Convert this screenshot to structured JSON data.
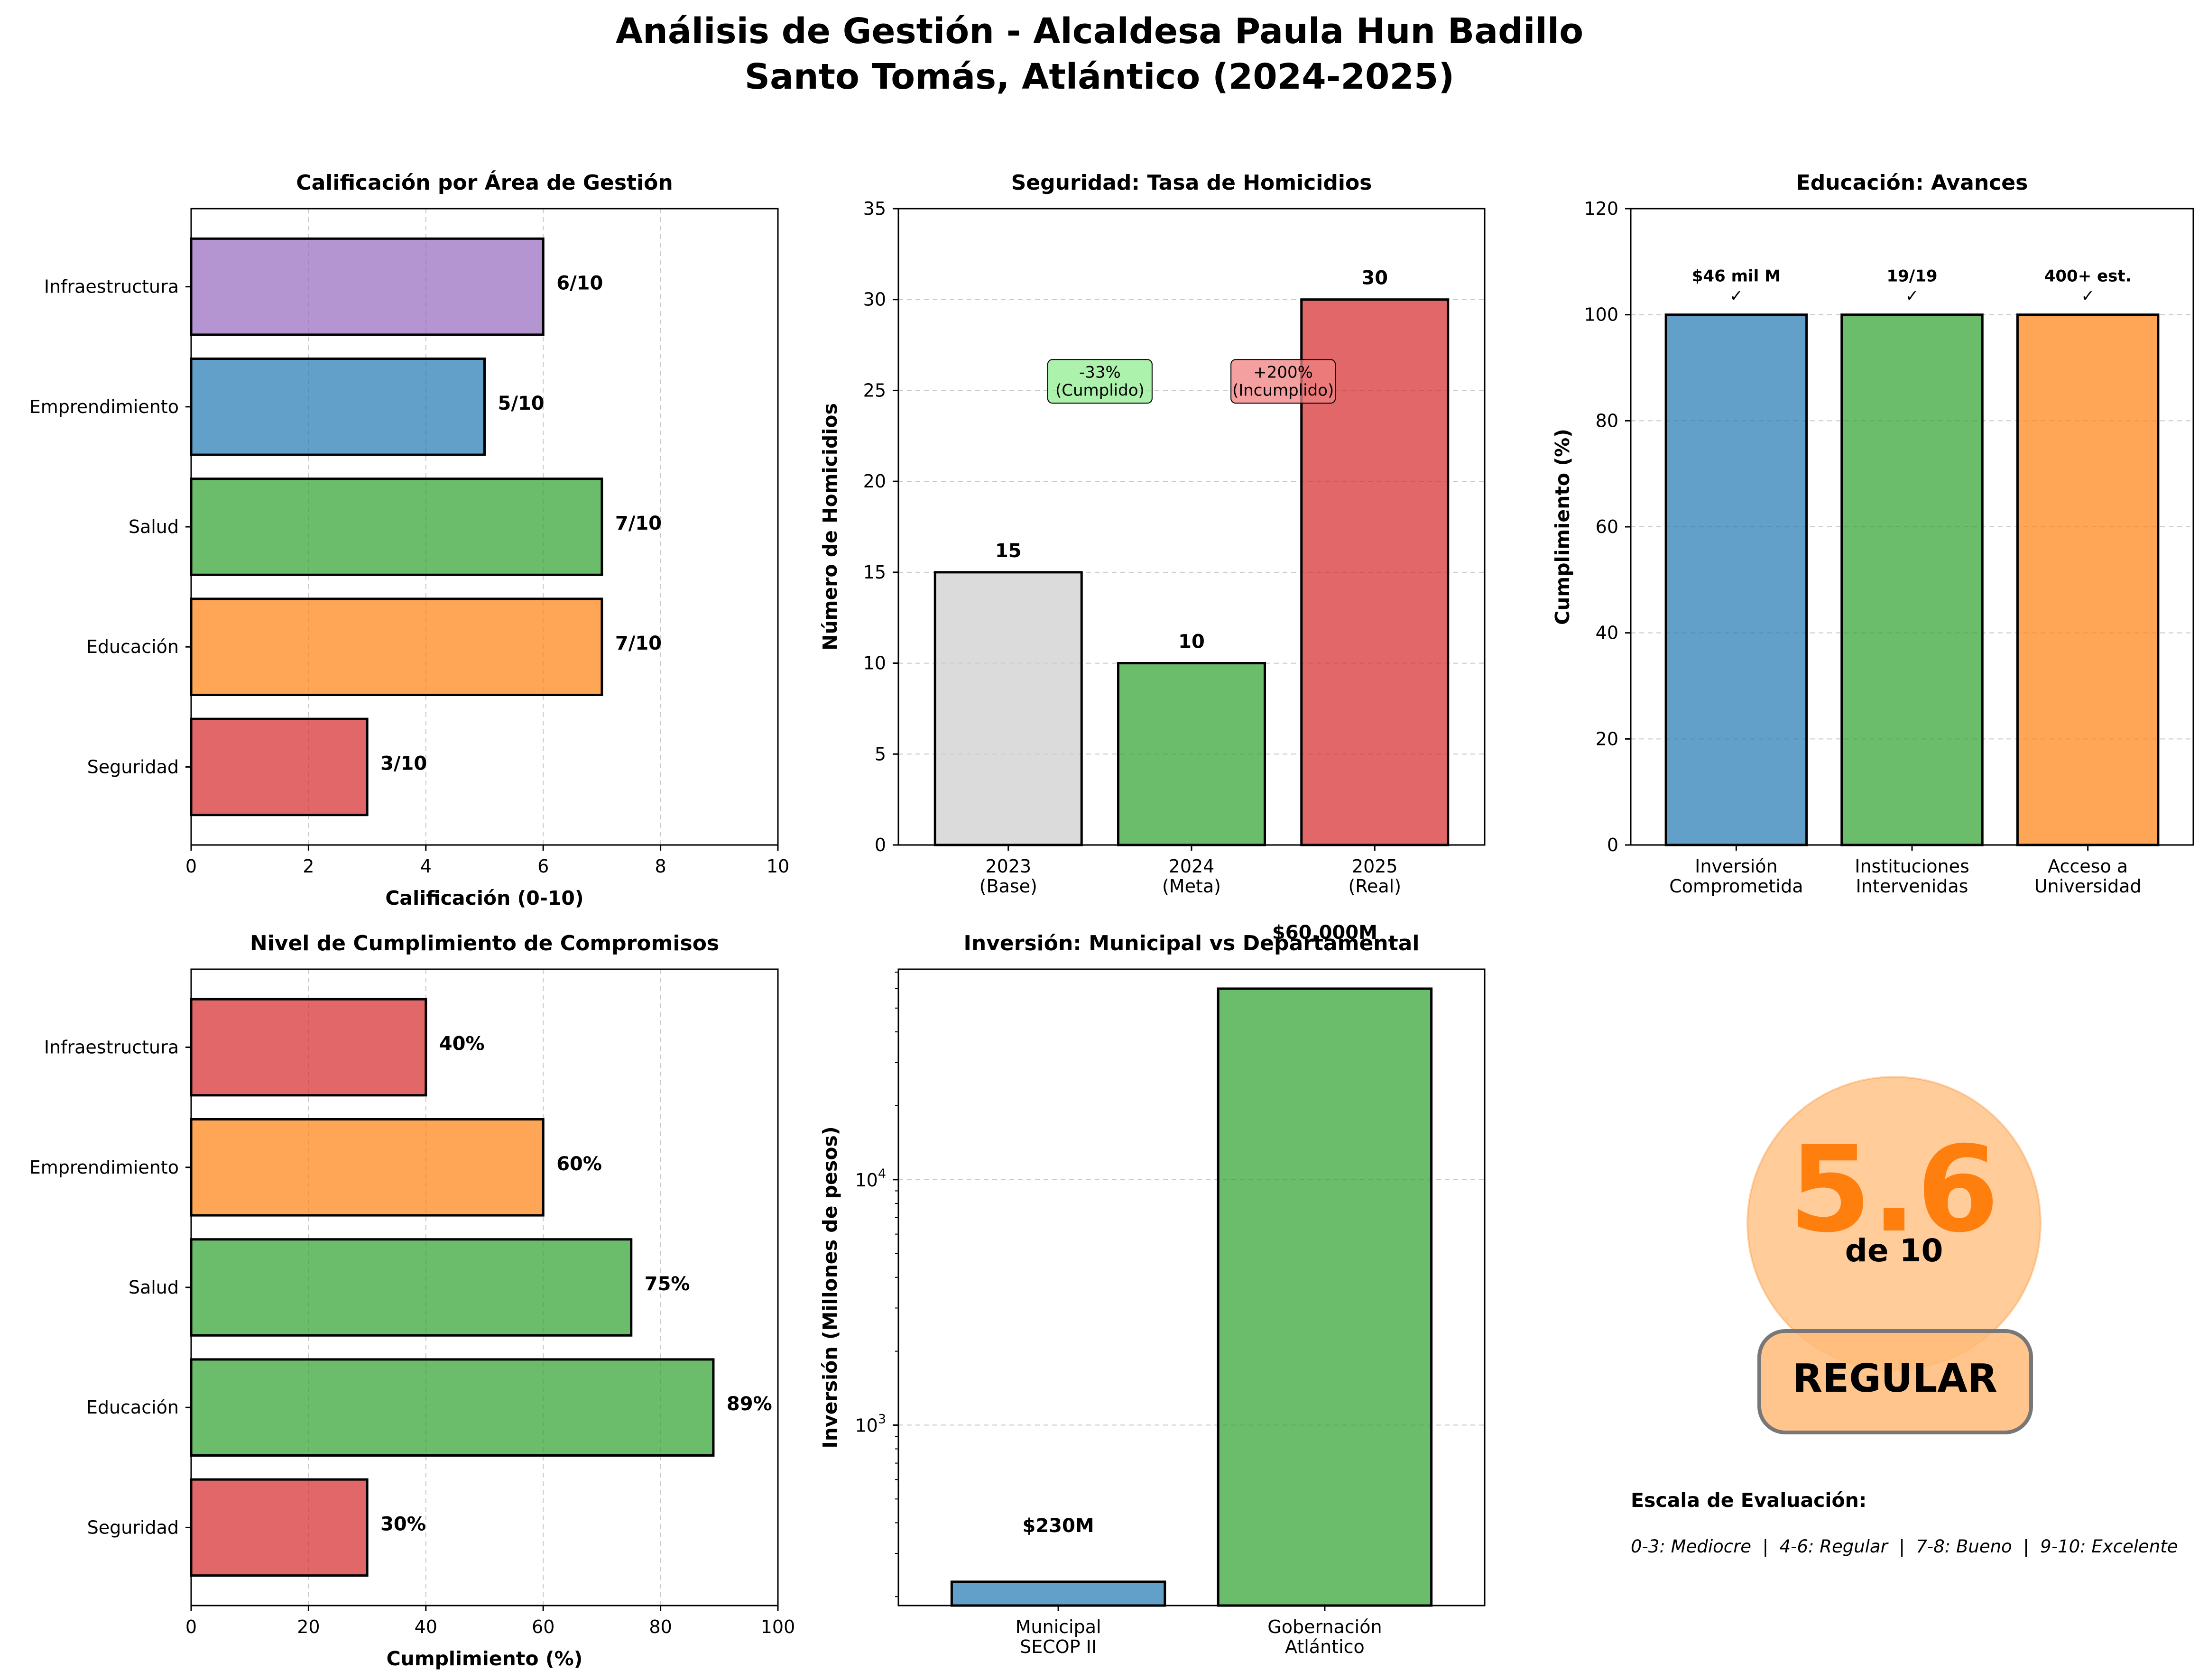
{
  "figure": {
    "title_line1": "Análisis de Gestión - Alcaldesa Paula Hun Badillo",
    "title_line2": "Santo Tomás, Atlántico (2024-2025)"
  },
  "colors": {
    "red": "#d62728",
    "orange": "#ff7f0e",
    "green": "#2ca02c",
    "blue": "#1f77b4",
    "purple": "#9467bd",
    "gray": "#cccccc"
  },
  "chart_data": [
    {
      "type": "bar",
      "orientation": "horizontal",
      "title": "Calificación por Área de Gestión",
      "xlabel": "Calificación (0-10)",
      "ylabel": "",
      "xlim": [
        0,
        10
      ],
      "xticks": [
        "0",
        "2",
        "4",
        "6",
        "8",
        "10"
      ],
      "categories": [
        "Seguridad",
        "Educación",
        "Salud",
        "Emprendimiento",
        "Infraestructura"
      ],
      "values": [
        3,
        7,
        7,
        5,
        6
      ],
      "labels": [
        "3/10",
        "7/10",
        "7/10",
        "5/10",
        "6/10"
      ],
      "bar_colors": [
        "#d62728",
        "#ff7f0e",
        "#2ca02c",
        "#1f77b4",
        "#9467bd"
      ],
      "grid": "x-dashed"
    },
    {
      "type": "bar",
      "title": "Seguridad: Tasa de Homicidios",
      "xlabel": "",
      "ylabel": "Número de Homicidios",
      "ylim": [
        0,
        35
      ],
      "yticks": [
        "0",
        "5",
        "10",
        "15",
        "20",
        "25",
        "30",
        "35"
      ],
      "categories": [
        [
          "2023",
          "(Base)"
        ],
        [
          "2024",
          "(Meta)"
        ],
        [
          "2025",
          "(Real)"
        ]
      ],
      "values": [
        15,
        10,
        30
      ],
      "labels": [
        "15",
        "10",
        "30"
      ],
      "bar_colors": [
        "#cccccc",
        "#2ca02c",
        "#d62728"
      ],
      "annotations": [
        {
          "lines": [
            "-33%",
            "(Cumplido)"
          ],
          "x": 0.5,
          "y": 25.5,
          "color": "#90ee90"
        },
        {
          "lines": [
            "+200%",
            "(Incumplido)"
          ],
          "x": 1.5,
          "y": 25.5,
          "color": "#f08080"
        }
      ],
      "grid": "y-dashed"
    },
    {
      "type": "bar",
      "title": "Educación: Avances",
      "xlabel": "",
      "ylabel": "Cumplimiento (%)",
      "ylim": [
        0,
        120
      ],
      "yticks": [
        "0",
        "20",
        "40",
        "60",
        "80",
        "100",
        "120"
      ],
      "categories": [
        [
          "Inversión",
          "Comprometida"
        ],
        [
          "Instituciones",
          "Intervenidas"
        ],
        [
          "Acceso a",
          "Universidad"
        ]
      ],
      "values": [
        100,
        100,
        100
      ],
      "labels": [
        [
          "$46 mil M",
          "✓"
        ],
        [
          "19/19",
          "✓"
        ],
        [
          "400+ est.",
          "✓"
        ]
      ],
      "bar_colors": [
        "#1f77b4",
        "#2ca02c",
        "#ff7f0e"
      ],
      "grid": "y-dashed"
    },
    {
      "type": "bar",
      "orientation": "horizontal",
      "title": "Nivel de Cumplimiento de Compromisos",
      "xlabel": "Cumplimiento (%)",
      "ylabel": "",
      "xlim": [
        0,
        100
      ],
      "xticks": [
        "0",
        "20",
        "40",
        "60",
        "80",
        "100"
      ],
      "categories": [
        "Seguridad",
        "Educación",
        "Salud",
        "Emprendimiento",
        "Infraestructura"
      ],
      "values": [
        30,
        89,
        75,
        60,
        40
      ],
      "labels": [
        "30%",
        "89%",
        "75%",
        "60%",
        "40%"
      ],
      "bar_colors": [
        "#d62728",
        "#2ca02c",
        "#2ca02c",
        "#ff7f0e",
        "#d62728"
      ],
      "grid": "x-dashed"
    },
    {
      "type": "bar",
      "title": "Inversión: Municipal vs Departamental",
      "xlabel": "",
      "ylabel": "Inversión (Millones de pesos)",
      "yscale": "log",
      "ylim": [
        184,
        72000
      ],
      "yticks": [
        1000,
        10000
      ],
      "categories": [
        [
          "Municipal",
          "SECOP II"
        ],
        [
          "Gobernación",
          "Atlántico"
        ]
      ],
      "values": [
        230,
        60000
      ],
      "labels": [
        "$230M",
        "$60,000M"
      ],
      "bar_colors": [
        "#1f77b4",
        "#2ca02c"
      ],
      "grid": "y-dashed"
    }
  ],
  "score_panel": {
    "score": "5.6",
    "out_of": "de 10",
    "rating": "REGULAR",
    "accent": "#ff7f0e",
    "scale_title": "Escala de Evaluación:",
    "scale_text": "0-3: Mediocre  |  4-6: Regular  |  7-8: Bueno  |  9-10: Excelente"
  }
}
